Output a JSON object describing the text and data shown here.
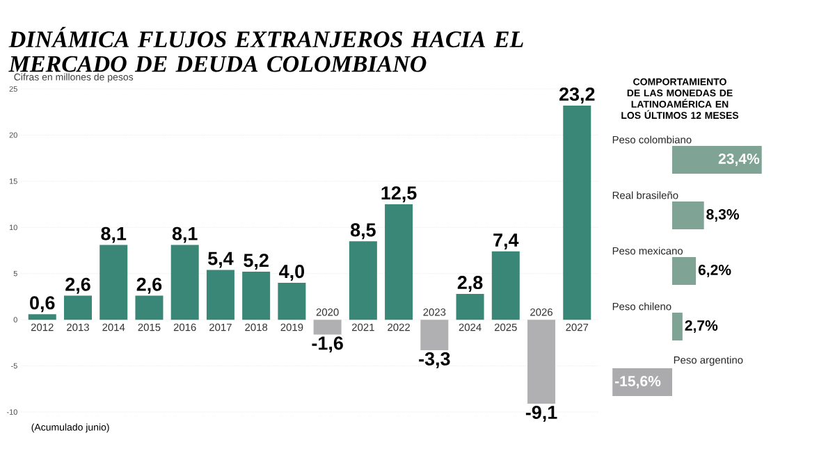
{
  "chart_data": [
    {
      "type": "bar",
      "title": "DINÁMICA FLUJOS EXTRANJEROS HACIA EL MERCADO DE DEUDA COLOMBIANO",
      "subtitle": "Cifras en millones de pesos",
      "categories": [
        "2012",
        "2013",
        "2014",
        "2015",
        "2016",
        "2017",
        "2018",
        "2019",
        "2020",
        "2021",
        "2022",
        "2023",
        "2024",
        "2025",
        "2026",
        "2027"
      ],
      "values": [
        0.6,
        2.6,
        8.1,
        2.6,
        8.1,
        5.4,
        5.2,
        4.0,
        -1.6,
        8.5,
        12.5,
        -3.3,
        2.8,
        7.4,
        -9.1,
        23.2
      ],
      "value_labels": [
        "0,6",
        "2,6",
        "8,1",
        "2,6",
        "8,1",
        "5,4",
        "5,2",
        "4,0",
        "-1,6",
        "8,5",
        "12,5",
        "-3,3",
        "2,8",
        "7,4",
        "-9,1",
        "23,2"
      ],
      "colors": [
        "#3a8677",
        "#3a8677",
        "#3a8677",
        "#3a8677",
        "#3a8677",
        "#3a8677",
        "#3a8677",
        "#3a8677",
        "#b0b0b3",
        "#3a8677",
        "#3a8677",
        "#b0b0b3",
        "#3a8677",
        "#3a8677",
        "#b0b0b3",
        "#3a8677"
      ],
      "ylim": [
        -10,
        25
      ],
      "yticks": [
        -10,
        -5,
        0,
        5,
        10,
        15,
        20,
        25
      ],
      "grid": "y",
      "annotations": [
        "(Acumulado junio)"
      ]
    },
    {
      "type": "bar",
      "orientation": "horizontal",
      "title": "COMPORTAMIENTO DE LAS MONEDAS DE LATINOAMÉRICA EN LOS ÚLTIMOS 12 MESES",
      "categories": [
        "Peso colombiano",
        "Real brasileño",
        "Peso mexicano",
        "Peso chileno",
        "Peso argentino"
      ],
      "values": [
        23.4,
        8.3,
        6.2,
        2.7,
        -15.6
      ],
      "value_labels": [
        "23,4%",
        "8,3%",
        "6,2%",
        "2,7%",
        "-15,6%"
      ],
      "colors": [
        "#7fa395",
        "#7fa395",
        "#7fa395",
        "#7fa395",
        "#ababad"
      ],
      "xlim": [
        -16,
        24
      ],
      "tick_labels": "y"
    }
  ]
}
